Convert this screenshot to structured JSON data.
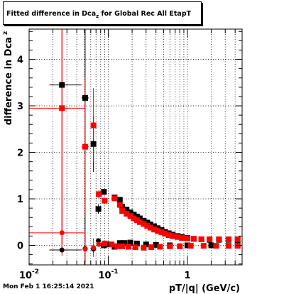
{
  "title_prefix": "Fitted difference in Dca",
  "title_sub": "z",
  "title_suffix": " for Global Rec All EtapT",
  "timestamp": "Mon Feb  1 16:25:14 2021",
  "colors": {
    "series_black": "#000000",
    "series_red": "#ff0000",
    "grid": "#000000"
  },
  "chart_data": {
    "type": "scatter",
    "title": "Fitted difference in Dca_z for Global Rec All EtapT",
    "xlabel": "pT/|q| (GeV/c)",
    "ylabel": "difference in Dca",
    "ylabel_sub": "z",
    "xscale": "log",
    "xlim": [
      0.01,
      4.9
    ],
    "ylim": [
      -0.42,
      4.65
    ],
    "grid": true,
    "x_major_ticks": [
      0.01,
      0.1,
      1
    ],
    "x_tick_labels": [
      "10",
      "10",
      "1"
    ],
    "x_tick_superscripts": [
      "-2",
      "-1",
      ""
    ],
    "y_ticks": [
      0,
      1,
      2,
      3,
      4
    ],
    "y_tick_labels": [
      "0",
      "1",
      "2",
      "3",
      "4"
    ],
    "series": [
      {
        "color": "#000000",
        "points": [
          {
            "x": 0.026,
            "y": 3.45,
            "yerr": 3.4,
            "xerr": [
              0.018,
              0.046
            ]
          },
          {
            "x": 0.051,
            "y": 3.17,
            "yerr": 3.1,
            "xerr": [
              0.046,
              0.057
            ]
          },
          {
            "x": 0.065,
            "y": 2.18,
            "yerr": 0.6
          },
          {
            "x": 0.075,
            "y": 0.78,
            "yerr": 0.1
          },
          {
            "x": 0.088,
            "y": 1.15,
            "yerr": 0.06
          },
          {
            "x": 0.12,
            "y": 1.03,
            "yerr": 0.05
          },
          {
            "x": 0.14,
            "y": 0.98
          },
          {
            "x": 0.15,
            "y": 0.83
          },
          {
            "x": 0.17,
            "y": 0.77
          },
          {
            "x": 0.19,
            "y": 0.71
          },
          {
            "x": 0.21,
            "y": 0.66
          },
          {
            "x": 0.23,
            "y": 0.62
          },
          {
            "x": 0.25,
            "y": 0.58
          },
          {
            "x": 0.28,
            "y": 0.53
          },
          {
            "x": 0.31,
            "y": 0.49
          },
          {
            "x": 0.34,
            "y": 0.45
          },
          {
            "x": 0.38,
            "y": 0.41
          },
          {
            "x": 0.42,
            "y": 0.37
          },
          {
            "x": 0.47,
            "y": 0.33
          },
          {
            "x": 0.52,
            "y": 0.29
          },
          {
            "x": 0.58,
            "y": 0.26
          },
          {
            "x": 0.65,
            "y": 0.23
          },
          {
            "x": 0.75,
            "y": 0.2
          },
          {
            "x": 0.85,
            "y": 0.18
          },
          {
            "x": 1.0,
            "y": 0.16
          },
          {
            "x": 1.2,
            "y": 0.14
          },
          {
            "x": 1.5,
            "y": 0.13
          },
          {
            "x": 1.9,
            "y": 0.12
          },
          {
            "x": 2.5,
            "y": 0.12
          },
          {
            "x": 3.3,
            "y": 0.12
          },
          {
            "x": 4.3,
            "y": 0.12
          },
          {
            "x": 0.026,
            "y": -0.1,
            "yerr": 0.05,
            "xerr": [
              0.018,
              0.046
            ]
          },
          {
            "x": 0.051,
            "y": -0.07,
            "yerr": 0.3
          },
          {
            "x": 0.065,
            "y": -0.08,
            "yerr": 0.08
          },
          {
            "x": 0.075,
            "y": 0.1,
            "yerr": 0.04
          },
          {
            "x": 0.088,
            "y": 0.0
          },
          {
            "x": 0.1,
            "y": 0.02
          },
          {
            "x": 0.12,
            "y": -0.03
          },
          {
            "x": 0.14,
            "y": 0.05
          },
          {
            "x": 0.16,
            "y": 0.05
          },
          {
            "x": 0.19,
            "y": 0.06
          },
          {
            "x": 0.23,
            "y": 0.04
          },
          {
            "x": 0.3,
            "y": 0.02
          },
          {
            "x": 0.4,
            "y": 0.01
          },
          {
            "x": 0.6,
            "y": 0.0
          },
          {
            "x": 1.0,
            "y": 0.0
          },
          {
            "x": 2.0,
            "y": 0.0
          },
          {
            "x": 4.3,
            "y": 0.0
          }
        ]
      },
      {
        "color": "#ff0000",
        "points": [
          {
            "x": 0.026,
            "y": 2.95,
            "yerr": 3.0,
            "xerr": [
              0.01,
              0.05
            ]
          },
          {
            "x": 0.051,
            "y": 2.12,
            "yerr": 1.5,
            "xerr": [
              0.046,
              0.057
            ]
          },
          {
            "x": 0.065,
            "y": 2.58,
            "yerr": 0.8
          },
          {
            "x": 0.076,
            "y": 1.1,
            "yerr": 0.1
          },
          {
            "x": 0.09,
            "y": 0.96,
            "yerr": 0.06
          },
          {
            "x": 0.12,
            "y": 1.01
          },
          {
            "x": 0.14,
            "y": 0.87
          },
          {
            "x": 0.15,
            "y": 0.74
          },
          {
            "x": 0.17,
            "y": 0.68
          },
          {
            "x": 0.19,
            "y": 0.63
          },
          {
            "x": 0.21,
            "y": 0.58
          },
          {
            "x": 0.23,
            "y": 0.54
          },
          {
            "x": 0.25,
            "y": 0.5
          },
          {
            "x": 0.28,
            "y": 0.46
          },
          {
            "x": 0.31,
            "y": 0.42
          },
          {
            "x": 0.34,
            "y": 0.38
          },
          {
            "x": 0.38,
            "y": 0.34
          },
          {
            "x": 0.42,
            "y": 0.31
          },
          {
            "x": 0.47,
            "y": 0.28
          },
          {
            "x": 0.52,
            "y": 0.25
          },
          {
            "x": 0.58,
            "y": 0.22
          },
          {
            "x": 0.65,
            "y": 0.2
          },
          {
            "x": 0.75,
            "y": 0.18
          },
          {
            "x": 0.85,
            "y": 0.16
          },
          {
            "x": 1.0,
            "y": 0.15
          },
          {
            "x": 1.2,
            "y": 0.14
          },
          {
            "x": 1.5,
            "y": 0.13
          },
          {
            "x": 1.9,
            "y": 0.13
          },
          {
            "x": 2.5,
            "y": 0.13
          },
          {
            "x": 3.3,
            "y": 0.13
          },
          {
            "x": 4.3,
            "y": 0.13
          },
          {
            "x": 0.026,
            "y": 0.27,
            "yerr": 0.5,
            "xerr": [
              0.01,
              0.05
            ]
          },
          {
            "x": 0.051,
            "y": -0.08,
            "yerr": 0.4
          },
          {
            "x": 0.065,
            "y": -0.05,
            "yerr": 0.2
          },
          {
            "x": 0.076,
            "y": 0.02
          },
          {
            "x": 0.09,
            "y": 0.04
          },
          {
            "x": 0.11,
            "y": 0.02
          },
          {
            "x": 0.13,
            "y": -0.02
          },
          {
            "x": 0.15,
            "y": -0.02
          },
          {
            "x": 0.18,
            "y": -0.03
          },
          {
            "x": 0.22,
            "y": -0.04
          },
          {
            "x": 0.28,
            "y": -0.05
          },
          {
            "x": 0.35,
            "y": -0.04
          },
          {
            "x": 0.45,
            "y": -0.03
          },
          {
            "x": 0.6,
            "y": -0.02
          },
          {
            "x": 0.8,
            "y": -0.02
          },
          {
            "x": 1.1,
            "y": -0.01
          },
          {
            "x": 1.6,
            "y": -0.01
          },
          {
            "x": 2.3,
            "y": -0.01
          },
          {
            "x": 3.3,
            "y": -0.01
          },
          {
            "x": 4.3,
            "y": -0.01
          }
        ]
      }
    ]
  }
}
